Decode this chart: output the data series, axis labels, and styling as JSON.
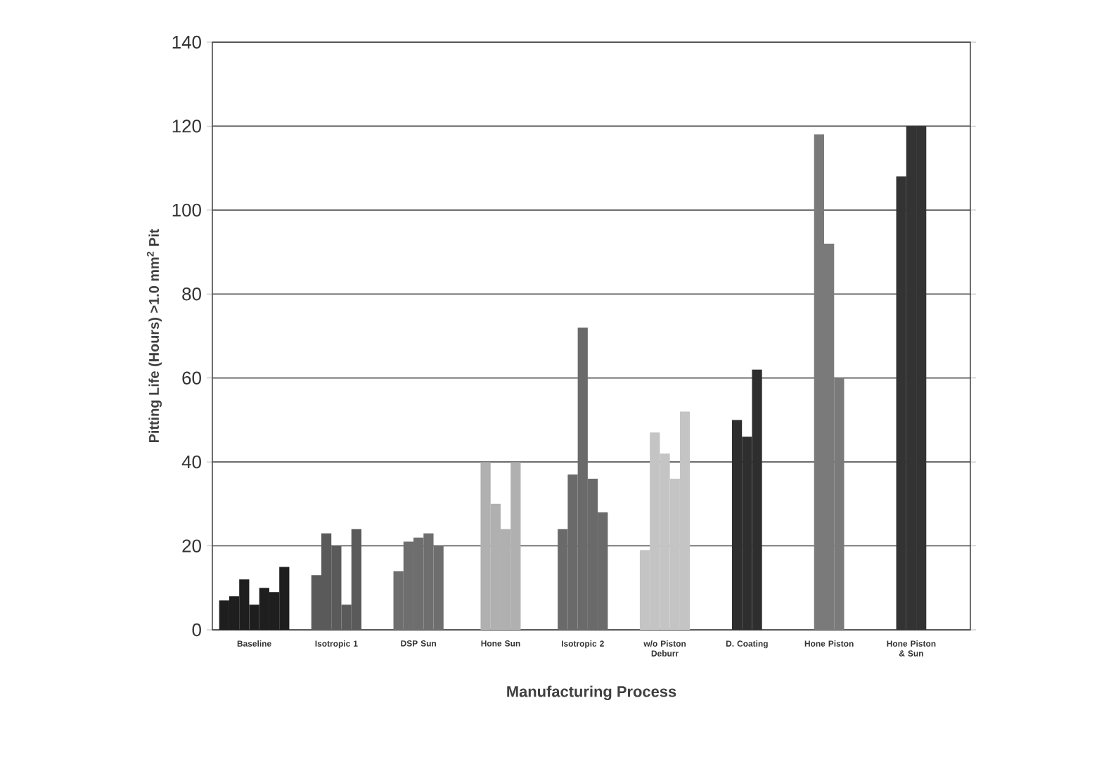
{
  "chart_data": {
    "type": "bar",
    "xlabel": "Manufacturing Process",
    "ylabel": "Pitting Life (Hours) >1.0 mm$^{2}$ Pit",
    "categories": [
      "Baseline",
      "Isotropic 1",
      "DSP Sun",
      "Hone Sun",
      "Isotropic 2",
      "w/o Piston Deburr",
      "D. Coating",
      "Hone Piston",
      "Hone Piston & Sun"
    ],
    "series": [
      {
        "values": [
          7,
          13,
          14,
          40,
          24,
          19,
          50,
          118,
          108
        ],
        "colors": [
          "#1e1e1e",
          "#5a5a5a",
          "#6e6e6e",
          "#b0b0b0",
          "#6a6a6a",
          "#c4c4c4",
          "#2e2e2e",
          "#7a7a7a",
          "#333333"
        ]
      },
      {
        "values": [
          8,
          23,
          21,
          30,
          37,
          47,
          46,
          92,
          120
        ],
        "colors": [
          "#1e1e1e",
          "#5a5a5a",
          "#6e6e6e",
          "#b0b0b0",
          "#6a6a6a",
          "#c4c4c4",
          "#2e2e2e",
          "#7a7a7a",
          "#333333"
        ]
      },
      {
        "values": [
          12,
          20,
          22,
          24,
          72,
          42,
          62,
          60,
          120
        ],
        "colors": [
          "#1e1e1e",
          "#5a5a5a",
          "#6e6e6e",
          "#b0b0b0",
          "#6a6a6a",
          "#c4c4c4",
          "#2e2e2e",
          "#7a7a7a",
          "#333333"
        ]
      },
      {
        "values": [
          6,
          6,
          23,
          40,
          36,
          36,
          null,
          null,
          null
        ],
        "colors": [
          "#1e1e1e",
          "#5a5a5a",
          "#6e6e6e",
          "#b0b0b0",
          "#6a6a6a",
          "#c4c4c4",
          null,
          null,
          null
        ]
      },
      {
        "values": [
          10,
          24,
          20,
          null,
          28,
          52,
          null,
          null,
          null
        ],
        "colors": [
          "#1e1e1e",
          "#5a5a5a",
          "#6e6e6e",
          null,
          "#6a6a6a",
          "#c4c4c4",
          null,
          null,
          null
        ]
      },
      {
        "values": [
          9,
          null,
          null,
          null,
          null,
          null,
          null,
          null,
          null
        ],
        "colors": [
          "#1e1e1e",
          null,
          null,
          null,
          null,
          null,
          null,
          null,
          null
        ]
      },
      {
        "values": [
          15,
          null,
          null,
          null,
          null,
          null,
          null,
          null,
          null
        ],
        "colors": [
          "#1e1e1e",
          null,
          null,
          null,
          null,
          null,
          null,
          null,
          null
        ]
      }
    ],
    "ylim": [
      0,
      140
    ],
    "yticks": [
      0,
      20,
      40,
      60,
      80,
      100,
      120,
      140
    ],
    "grid": "y"
  }
}
